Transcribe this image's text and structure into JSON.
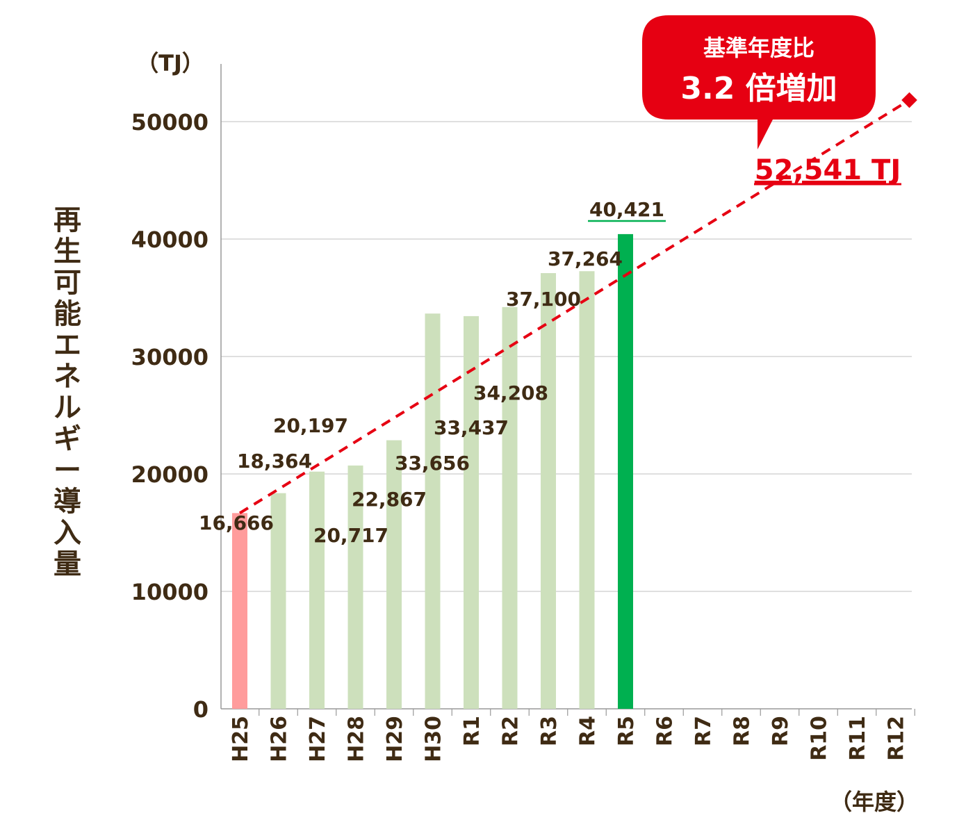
{
  "chart_data": {
    "type": "bar",
    "ylabel": "再生可能エネルギー導入量",
    "unit_label": "（TJ）",
    "xunit_label": "（年度）",
    "ylim": [
      0,
      55000
    ],
    "yticks": [
      0,
      10000,
      20000,
      30000,
      40000,
      50000
    ],
    "ytick_labels": [
      "0",
      "10000",
      "20000",
      "30000",
      "40000",
      "50000"
    ],
    "grid": true,
    "categories": [
      "H25",
      "H26",
      "H27",
      "H28",
      "H29",
      "H30",
      "R1",
      "R2",
      "R3",
      "R4",
      "R5",
      "R6",
      "R7",
      "R8",
      "R9",
      "R10",
      "R11",
      "R12"
    ],
    "values": [
      16666,
      18364,
      20197,
      20717,
      22867,
      33656,
      33437,
      34208,
      37100,
      37264,
      40421,
      null,
      null,
      null,
      null,
      null,
      null,
      null
    ],
    "value_labels": [
      "16,666",
      "18,364",
      "20,197",
      "20,717",
      "22,867",
      "33,656",
      "33,437",
      "34,208",
      "37,100",
      "37,264",
      "40,421",
      "",
      "",
      "",
      "",
      "",
      "",
      ""
    ],
    "bar_colors": [
      "#ff9c9c",
      "#cde0bc",
      "#cde0bc",
      "#cde0bc",
      "#cde0bc",
      "#cde0bc",
      "#cde0bc",
      "#cde0bc",
      "#cde0bc",
      "#cde0bc",
      "#00b050",
      "",
      "",
      "",
      "",
      "",
      "",
      ""
    ],
    "highlight_color": "#00b050",
    "target_line": {
      "style": "dashed",
      "color": "#e60012",
      "start_category": "H25",
      "start_value": 16666,
      "end_category": "R12",
      "end_value": 52541,
      "end_label": "52,541 TJ"
    },
    "callout": {
      "line1": "基準年度比",
      "line2": "3.2 倍増加",
      "color": "#e60012"
    }
  }
}
